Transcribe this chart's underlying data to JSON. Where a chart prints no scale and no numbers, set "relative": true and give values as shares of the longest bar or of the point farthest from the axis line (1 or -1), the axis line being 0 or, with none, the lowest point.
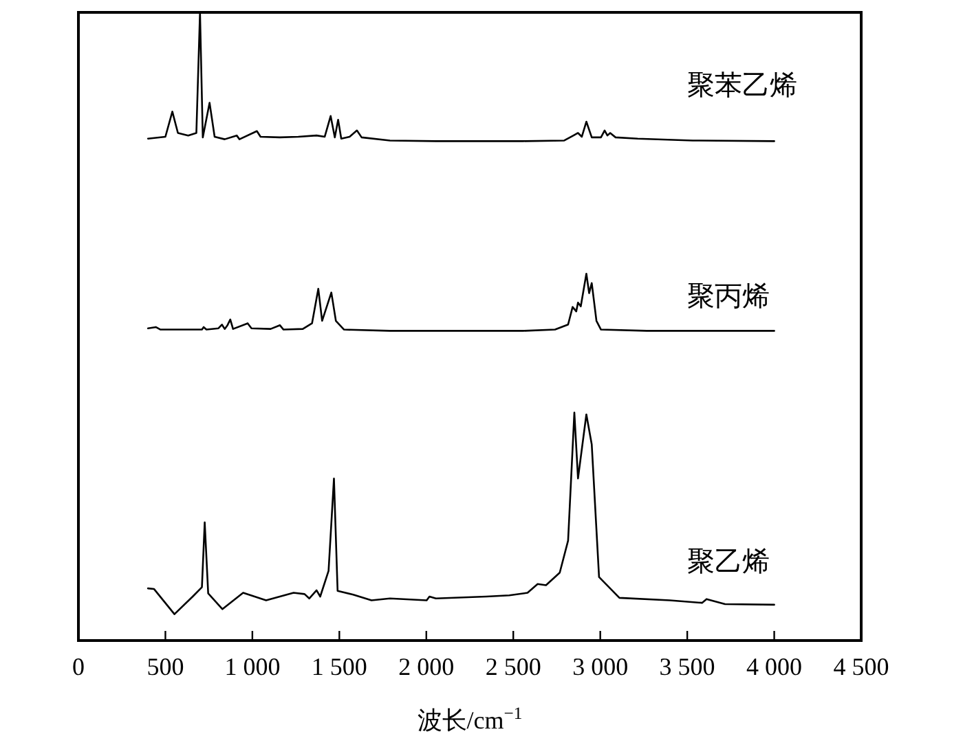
{
  "chart_data": {
    "type": "line",
    "relative": true,
    "xlabel": "波长/cm$^{−1}$",
    "xlim": [
      0,
      4500
    ],
    "xticks": [
      0,
      500,
      {
        "value": 1000,
        "label": "1 000"
      },
      {
        "value": 1500,
        "label": "1 500"
      },
      {
        "value": 2000,
        "label": "2 000"
      },
      {
        "value": 2500,
        "label": "2 500"
      },
      {
        "value": 3000,
        "label": "3 000"
      },
      {
        "value": 3500,
        "label": "3 500"
      },
      {
        "value": 4000,
        "label": "4 000"
      },
      {
        "value": 4500,
        "label": "4 500"
      }
    ],
    "series": [
      {
        "name": "聚苯乙烯",
        "color": "#000000",
        "x": [
          400,
          500,
          540,
          572,
          631,
          678,
          699,
          715,
          754,
          783,
          841,
          910,
          926,
          1026,
          1047,
          1158,
          1264,
          1369,
          1416,
          1450,
          1474,
          1493,
          1511,
          1559,
          1601,
          1628,
          1791,
          2055,
          2556,
          2793,
          2846,
          2872,
          2894,
          2920,
          2951,
          3004,
          3025,
          3041,
          3057,
          3088,
          3215,
          3532,
          4000
        ],
        "values": [
          0.799,
          0.802,
          0.842,
          0.808,
          0.804,
          0.808,
          1.0,
          0.801,
          0.856,
          0.802,
          0.798,
          0.804,
          0.798,
          0.811,
          0.802,
          0.801,
          0.802,
          0.804,
          0.802,
          0.835,
          0.801,
          0.829,
          0.799,
          0.802,
          0.812,
          0.801,
          0.796,
          0.795,
          0.795,
          0.796,
          0.804,
          0.808,
          0.802,
          0.826,
          0.801,
          0.801,
          0.812,
          0.804,
          0.808,
          0.801,
          0.799,
          0.796,
          0.795
        ]
      },
      {
        "name": "聚丙烯",
        "color": "#000000",
        "x": [
          400,
          445,
          472,
          710,
          720,
          736,
          805,
          825,
          841,
          857,
          873,
          889,
          973,
          995,
          1105,
          1158,
          1179,
          1290,
          1343,
          1379,
          1401,
          1454,
          1480,
          1527,
          1791,
          2556,
          2740,
          2815,
          2841,
          2862,
          2872,
          2888,
          2920,
          2936,
          2951,
          2978,
          3004,
          3268,
          4000
        ],
        "values": [
          0.497,
          0.499,
          0.495,
          0.495,
          0.499,
          0.495,
          0.497,
          0.503,
          0.496,
          0.502,
          0.511,
          0.496,
          0.505,
          0.497,
          0.496,
          0.502,
          0.495,
          0.496,
          0.505,
          0.56,
          0.509,
          0.554,
          0.509,
          0.495,
          0.493,
          0.493,
          0.495,
          0.503,
          0.531,
          0.524,
          0.538,
          0.532,
          0.584,
          0.553,
          0.569,
          0.509,
          0.495,
          0.493,
          0.493
        ]
      },
      {
        "name": "聚乙烯",
        "color": "#000000",
        "x": [
          400,
          435,
          552,
          657,
          710,
          726,
          746,
          828,
          947,
          1079,
          1237,
          1300,
          1327,
          1369,
          1390,
          1438,
          1469,
          1490,
          1580,
          1685,
          1791,
          2002,
          2018,
          2055,
          2345,
          2477,
          2582,
          2640,
          2688,
          2767,
          2815,
          2851,
          2872,
          2920,
          2951,
          2993,
          3110,
          3400,
          3585,
          3611,
          3717,
          4000
        ],
        "values": [
          0.083,
          0.082,
          0.042,
          0.07,
          0.085,
          0.188,
          0.075,
          0.05,
          0.076,
          0.064,
          0.076,
          0.074,
          0.067,
          0.08,
          0.07,
          0.111,
          0.258,
          0.079,
          0.073,
          0.064,
          0.067,
          0.064,
          0.07,
          0.067,
          0.07,
          0.072,
          0.076,
          0.09,
          0.088,
          0.108,
          0.159,
          0.363,
          0.258,
          0.36,
          0.312,
          0.101,
          0.068,
          0.064,
          0.06,
          0.066,
          0.058,
          0.057
        ]
      }
    ]
  }
}
